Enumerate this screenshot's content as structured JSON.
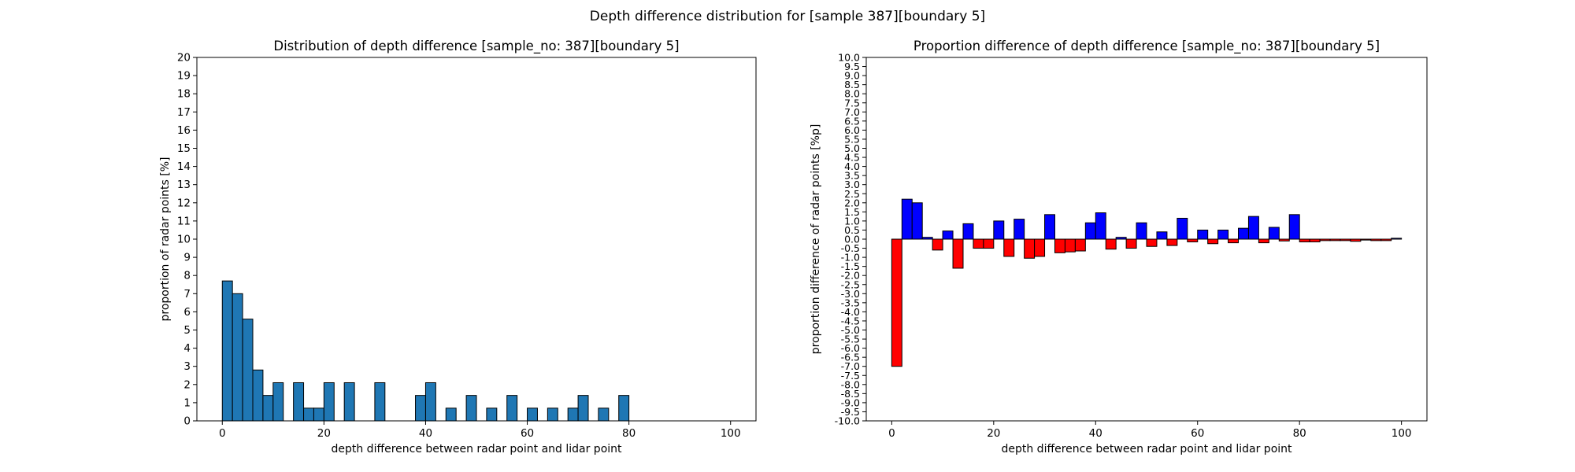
{
  "suptitle": "Depth difference distribution for [sample 387][boundary 5]",
  "chart_data": [
    {
      "type": "bar",
      "title": "Distribution of depth difference [sample_no: 387][boundary 5]",
      "xlabel": "depth difference between radar point and lidar point",
      "ylabel": "proportion of radar points [%]",
      "xlim": [
        -5,
        105
      ],
      "ylim": [
        0,
        20
      ],
      "xticks": [
        0,
        20,
        40,
        60,
        80,
        100
      ],
      "yticks": [
        0,
        1,
        2,
        3,
        4,
        5,
        6,
        7,
        8,
        9,
        10,
        11,
        12,
        13,
        14,
        15,
        16,
        17,
        18,
        19,
        20
      ],
      "bin_width": 2,
      "x": [
        0,
        2,
        4,
        6,
        8,
        10,
        12,
        14,
        16,
        18,
        20,
        22,
        24,
        26,
        28,
        30,
        32,
        34,
        36,
        38,
        40,
        42,
        44,
        46,
        48,
        50,
        52,
        54,
        56,
        58,
        60,
        62,
        64,
        66,
        68,
        70,
        72,
        74,
        76,
        78
      ],
      "values": [
        7.7,
        7.0,
        5.6,
        2.8,
        1.4,
        2.1,
        0,
        2.1,
        0.7,
        0.7,
        2.1,
        0,
        2.1,
        0,
        0,
        2.1,
        0,
        0,
        0,
        1.4,
        2.1,
        0,
        0.7,
        0,
        1.4,
        0,
        0.7,
        0,
        1.4,
        0,
        0.7,
        0,
        0.7,
        0,
        0.7,
        1.4,
        0,
        0.7,
        0,
        1.4
      ],
      "colors": {
        "bar": "#1f77b4",
        "edge": "#000000"
      }
    },
    {
      "type": "bar",
      "title": "Proportion difference of depth difference [sample_no: 387][boundary 5]",
      "xlabel": "depth difference between radar point and lidar point",
      "ylabel": "proportion difference of radar points [%p]",
      "xlim": [
        -5,
        105
      ],
      "ylim": [
        -10,
        10
      ],
      "xticks": [
        0,
        20,
        40,
        60,
        80,
        100
      ],
      "yticks": [
        "-10.0",
        "-9.5",
        "-9.0",
        "-8.5",
        "-8.0",
        "-7.5",
        "-7.0",
        "-6.5",
        "-6.0",
        "-5.5",
        "-5.0",
        "-4.5",
        "-4.0",
        "-3.5",
        "-3.0",
        "-2.5",
        "-2.0",
        "-1.5",
        "-1.0",
        "-0.5",
        "0.0",
        "0.5",
        "1.0",
        "1.5",
        "2.0",
        "2.5",
        "3.0",
        "3.5",
        "4.0",
        "4.5",
        "5.0",
        "5.5",
        "6.0",
        "6.5",
        "7.0",
        "7.5",
        "8.0",
        "8.5",
        "9.0",
        "9.5",
        "10.0"
      ],
      "bin_width": 2,
      "x": [
        0,
        2,
        4,
        6,
        8,
        10,
        12,
        14,
        16,
        18,
        20,
        22,
        24,
        26,
        28,
        30,
        32,
        34,
        36,
        38,
        40,
        42,
        44,
        46,
        48,
        50,
        52,
        54,
        56,
        58,
        60,
        62,
        64,
        66,
        68,
        70,
        72,
        74,
        76,
        78,
        80,
        82,
        84,
        86,
        88,
        90,
        92,
        94,
        96,
        98
      ],
      "values": [
        -7.0,
        2.2,
        2.0,
        0.1,
        -0.6,
        0.45,
        -1.6,
        0.85,
        -0.5,
        -0.5,
        1.0,
        -0.95,
        1.1,
        -1.05,
        -0.95,
        1.35,
        -0.75,
        -0.7,
        -0.65,
        0.9,
        1.45,
        -0.55,
        0.1,
        -0.5,
        0.9,
        -0.4,
        0.4,
        -0.35,
        1.15,
        -0.15,
        0.5,
        -0.25,
        0.5,
        -0.2,
        0.6,
        1.25,
        -0.2,
        0.65,
        -0.1,
        1.35,
        -0.15,
        -0.15,
        -0.08,
        -0.08,
        -0.08,
        -0.12,
        -0.05,
        -0.08,
        -0.08,
        0.05
      ],
      "colors": {
        "positive": "#0000ff",
        "negative": "#ff0000",
        "edge": "#000000"
      }
    }
  ]
}
